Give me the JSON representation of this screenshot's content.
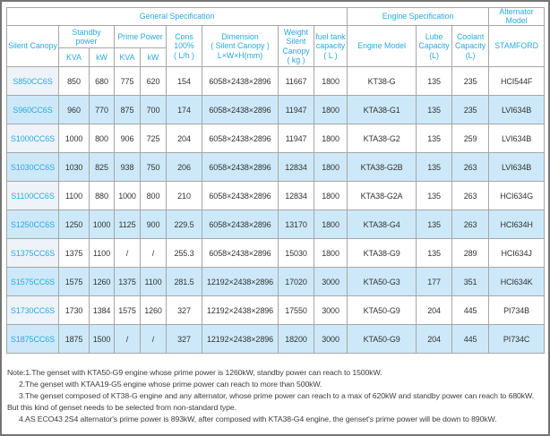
{
  "header": {
    "sections": [
      "General Specification",
      "Engine Specification",
      "Alternator\nModel"
    ],
    "columns": {
      "silent_canopy": "Silent Canopy",
      "standby_power": "Standby\npower",
      "prime_power": "Prime Power",
      "cons": "Cons\n100%\n( L/h )",
      "dimension": "Dimension\n( Silent Canopy )\nL×W×H(mm)",
      "weight": "Weight\nSilent\nCanopy\n( kg )",
      "fuel_tank": "fuel tank\ncapacity\n( L )",
      "engine_model": "Engine Model",
      "lube": "Lube\nCapacity\n(L)",
      "coolant": "Coolant\nCapacity\n(L)",
      "stamford": "STAMFORD"
    },
    "units": [
      "KVA",
      "kW",
      "KVA",
      "kW"
    ]
  },
  "rows": [
    {
      "model": "S850CC6S",
      "values": [
        "850",
        "680",
        "775",
        "620",
        "154",
        "6058×2438×2896",
        "11667",
        "1800",
        "KT38-G",
        "135",
        "235",
        "HCI544F"
      ]
    },
    {
      "model": "S960CC6S",
      "values": [
        "960",
        "770",
        "875",
        "700",
        "174",
        "6058×2438×2896",
        "11947",
        "1800",
        "KTA38-G1",
        "135",
        "235",
        "LVI634B"
      ]
    },
    {
      "model": "S1000CC6S",
      "values": [
        "1000",
        "800",
        "906",
        "725",
        "204",
        "6058×2438×2896",
        "11947",
        "1800",
        "KTA38-G2",
        "135",
        "259",
        "LVI634B"
      ]
    },
    {
      "model": "S1030CC6S",
      "values": [
        "1030",
        "825",
        "938",
        "750",
        "206",
        "6058×2438×2896",
        "12834",
        "1800",
        "KTA38-G2B",
        "135",
        "263",
        "LVI634B"
      ]
    },
    {
      "model": "S1100CC6S",
      "values": [
        "1100",
        "880",
        "1000",
        "800",
        "210",
        "6058×2438×2896",
        "12834",
        "1800",
        "KTA38-G2A",
        "135",
        "263",
        "HCI634G"
      ]
    },
    {
      "model": "S1250CC6S",
      "values": [
        "1250",
        "1000",
        "1125",
        "900",
        "229.5",
        "6058×2438×2896",
        "13170",
        "1800",
        "KTA38-G4",
        "135",
        "263",
        "HCI634H"
      ]
    },
    {
      "model": "S1375CC6S",
      "values": [
        "1375",
        "1100",
        "/",
        "/",
        "255.3",
        "6058×2438×2896",
        "15030",
        "1800",
        "KTA38-G9",
        "135",
        "289",
        "HCI634J"
      ]
    },
    {
      "model": "S1575CC6S",
      "values": [
        "1575",
        "1260",
        "1375",
        "1100",
        "281.5",
        "12192×2438×2896",
        "17020",
        "3000",
        "KTA50-G3",
        "177",
        "351",
        "HCI634K"
      ]
    },
    {
      "model": "S1730CC6S",
      "values": [
        "1730",
        "1384",
        "1575",
        "1260",
        "327",
        "12192×2438×2896",
        "17550",
        "3000",
        "KTA50-G9",
        "204",
        "445",
        "PI734B"
      ]
    },
    {
      "model": "S1875CC6S",
      "values": [
        "1875",
        "1500",
        "/",
        "/",
        "327",
        "12192×2438×2896",
        "18200",
        "3000",
        "KTA50-G9",
        "204",
        "445",
        "PI734C"
      ]
    }
  ],
  "notes": {
    "lines": [
      "Note:1.The genset with KTA50-G9 engine whose prime power is 1260kW, standby power can reach to 1500kW.",
      "2.The genset with KTAA19-G5 engine whose prime power can reach to more than 500kW.",
      "3.The genset composed of KT38-G engine and any alternator, whose prime power can reach to a max of 620kW and standby power can reach to 680kW.",
      "But this kind of genset needs to be selected from non-standard type.",
      "4.AS ECO43 2S4 alternator's prime power is 893kW, after composed with KTA38-G4 engine, the genset's prime power will be down to 890kW."
    ]
  },
  "colors": {
    "accent": "#29a9e2",
    "row_highlight": "#cde9f9",
    "model_column_tint": "#eef3f9",
    "grid_border": "#a6a6a6",
    "outer_border": "#757575",
    "data_text": "#333333"
  }
}
